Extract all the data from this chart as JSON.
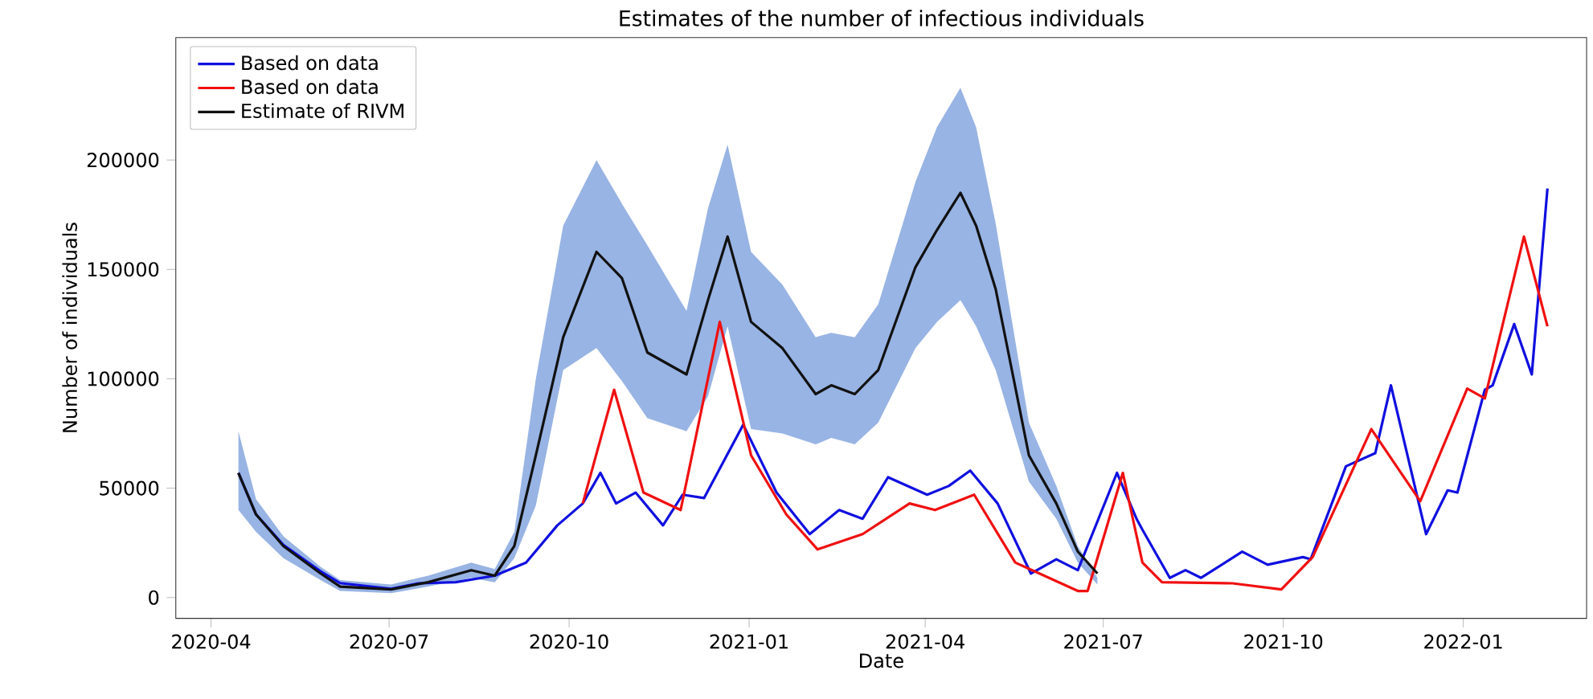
{
  "chart_data": {
    "type": "line",
    "title": "Estimates of the number of infectious individuals",
    "xlabel": "Date",
    "ylabel": "Number of individuals",
    "xlim": [
      "2020-03-14",
      "2022-03-05"
    ],
    "xticks": [
      "2020-04",
      "2020-07",
      "2020-10",
      "2021-01",
      "2021-04",
      "2021-07",
      "2021-10",
      "2022-01"
    ],
    "ylim": [
      -9500,
      256000
    ],
    "yticks": [
      0,
      50000,
      100000,
      150000,
      200000
    ],
    "legend": "top left",
    "grid": false,
    "line_style": "solid",
    "series": [
      {
        "name": "Based on data",
        "color": "#1010e0",
        "x": [
          "2020-04-15",
          "2020-04-24",
          "2020-05-08",
          "2020-05-27",
          "2020-06-06",
          "2020-07-02",
          "2020-07-16",
          "2020-08-04",
          "2020-08-24",
          "2020-09-09",
          "2020-09-25",
          "2020-10-08",
          "2020-10-17",
          "2020-10-25",
          "2020-11-04",
          "2020-11-18",
          "2020-11-28",
          "2020-12-09",
          "2020-12-29",
          "2021-01-15",
          "2021-02-01",
          "2021-02-16",
          "2021-02-28",
          "2021-03-13",
          "2021-04-02",
          "2021-04-13",
          "2021-04-24",
          "2021-05-08",
          "2021-05-25",
          "2021-06-07",
          "2021-06-18",
          "2021-07-08",
          "2021-07-18",
          "2021-07-21",
          "2021-08-04",
          "2021-08-12",
          "2021-08-20",
          "2021-09-10",
          "2021-09-23",
          "2021-10-11",
          "2021-10-15",
          "2021-11-02",
          "2021-11-17",
          "2021-11-25",
          "2021-12-13",
          "2021-12-24",
          "2021-12-29",
          "2022-01-12",
          "2022-01-16",
          "2022-01-27",
          "2022-02-05",
          "2022-02-13"
        ],
        "values": [
          57000,
          38000,
          24000,
          12000,
          6600,
          4000,
          6500,
          7000,
          10000,
          16000,
          33000,
          43000,
          57000,
          43000,
          48000,
          33000,
          47000,
          45500,
          79000,
          48000,
          29000,
          40000,
          36000,
          55000,
          47000,
          51000,
          58000,
          43000,
          11000,
          17500,
          12500,
          57000,
          36000,
          31000,
          9000,
          12500,
          9000,
          21000,
          15000,
          18500,
          17500,
          60000,
          66000,
          97000,
          29000,
          49000,
          48000,
          95000,
          97000,
          125000,
          102000,
          187000
        ]
      },
      {
        "name": "Based on data",
        "color": "#f01010",
        "x": [
          "2020-10-08",
          "2020-10-24",
          "2020-11-08",
          "2020-11-27",
          "2020-12-17",
          "2021-01-02",
          "2021-01-20",
          "2021-02-05",
          "2021-02-28",
          "2021-03-24",
          "2021-04-06",
          "2021-04-26",
          "2021-05-17",
          "2021-06-18",
          "2021-06-23",
          "2021-07-11",
          "2021-07-21",
          "2021-07-31",
          "2021-09-05",
          "2021-09-30",
          "2021-10-16",
          "2021-11-15",
          "2021-12-10",
          "2022-01-03",
          "2022-01-12",
          "2022-02-01",
          "2022-02-13"
        ],
        "values": [
          43000,
          95000,
          48000,
          40000,
          126000,
          65000,
          38000,
          22000,
          29000,
          43000,
          40000,
          47000,
          16000,
          3000,
          3000,
          57000,
          16000,
          7000,
          6500,
          3700,
          18500,
          77000,
          44000,
          95500,
          91000,
          165000,
          124000
        ]
      },
      {
        "name": "Estimate of RIVM",
        "color": "#111111",
        "x": [
          "2020-04-15",
          "2020-04-24",
          "2020-05-08",
          "2020-05-27",
          "2020-06-06",
          "2020-07-02",
          "2020-07-21",
          "2020-08-12",
          "2020-08-24",
          "2020-09-03",
          "2020-09-14",
          "2020-09-28",
          "2020-10-15",
          "2020-10-28",
          "2020-11-10",
          "2020-11-30",
          "2020-12-11",
          "2020-12-21",
          "2021-01-02",
          "2021-01-18",
          "2021-02-04",
          "2021-02-12",
          "2021-02-24",
          "2021-03-08",
          "2021-03-27",
          "2021-04-07",
          "2021-04-19",
          "2021-04-27",
          "2021-05-07",
          "2021-05-24",
          "2021-06-07",
          "2021-06-18",
          "2021-06-28"
        ],
        "values": [
          57000,
          38000,
          23500,
          11000,
          5000,
          3700,
          7000,
          12500,
          10000,
          23500,
          65000,
          119000,
          158000,
          146000,
          112000,
          102000,
          136000,
          165000,
          126000,
          114000,
          93000,
          97000,
          93000,
          104000,
          151000,
          168000,
          185000,
          170000,
          141000,
          65000,
          43000,
          21000,
          11000
        ],
        "upper": [
          76000,
          45000,
          28000,
          14000,
          8000,
          6000,
          10000,
          16000,
          13000,
          30000,
          100000,
          170000,
          200000,
          180000,
          161000,
          131000,
          178000,
          207000,
          158000,
          143000,
          119000,
          121000,
          119000,
          134000,
          190000,
          215000,
          233000,
          215000,
          171000,
          80000,
          51000,
          23500,
          9000
        ],
        "lower": [
          40000,
          30000,
          18000,
          8000,
          3000,
          2000,
          5000,
          9000,
          7000,
          18000,
          42000,
          104000,
          114000,
          99000,
          82000,
          76000,
          92000,
          124000,
          77000,
          75000,
          70000,
          73000,
          70000,
          80000,
          114000,
          126000,
          136000,
          124000,
          104000,
          53000,
          36000,
          16000,
          6000
        ]
      }
    ]
  }
}
